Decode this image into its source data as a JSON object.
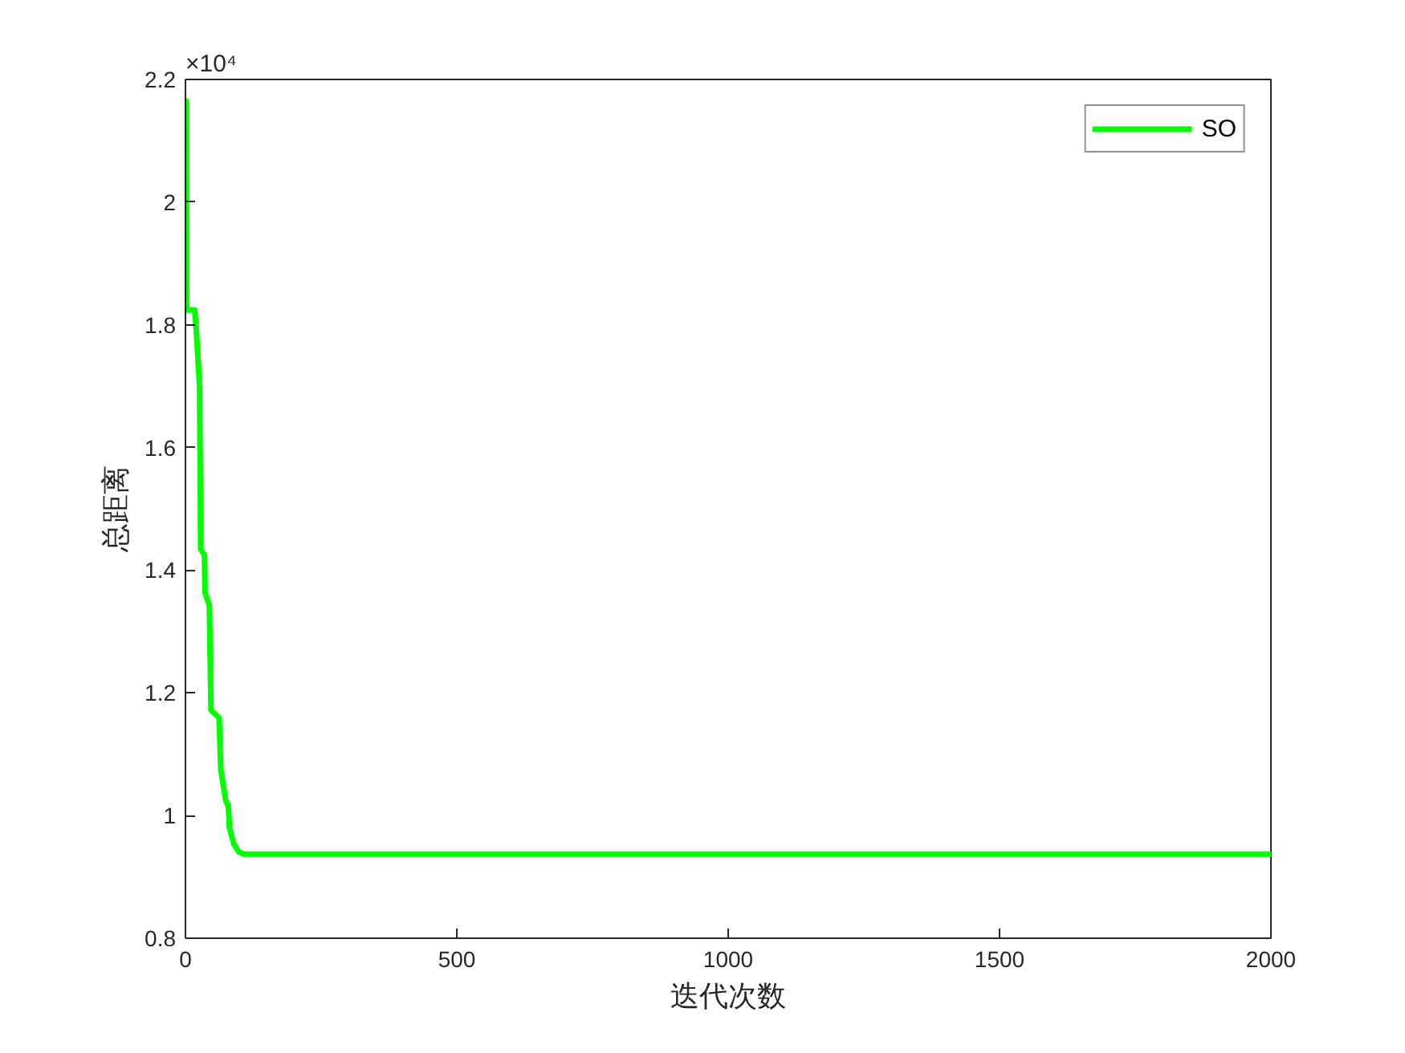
{
  "chart_data": {
    "type": "line",
    "xlabel": "迭代次数",
    "ylabel": "总距离",
    "annotations": [
      "×10⁴"
    ],
    "xlim": [
      0,
      2000
    ],
    "xticks": [
      0,
      500,
      1000,
      1500,
      2000
    ],
    "ylim": [
      0.8,
      2.2
    ],
    "yticks": [
      0.8,
      1,
      1.2,
      1.4,
      1.6,
      1.8,
      2,
      2.2
    ],
    "grid": false,
    "legend": "top right",
    "line_style": "solid",
    "series": [
      {
        "name": "SO",
        "color": "#00ff00",
        "x": [
          1,
          2,
          17,
          20,
          26,
          28,
          35,
          36,
          44,
          47,
          62,
          65,
          74,
          79,
          81,
          89,
          98,
          108,
          2000
        ],
        "values": [
          2.165,
          1.824,
          1.824,
          1.79,
          1.7,
          1.434,
          1.425,
          1.364,
          1.342,
          1.172,
          1.159,
          1.076,
          1.025,
          1.015,
          0.98,
          0.954,
          0.941,
          0.937,
          0.937
        ]
      }
    ]
  }
}
